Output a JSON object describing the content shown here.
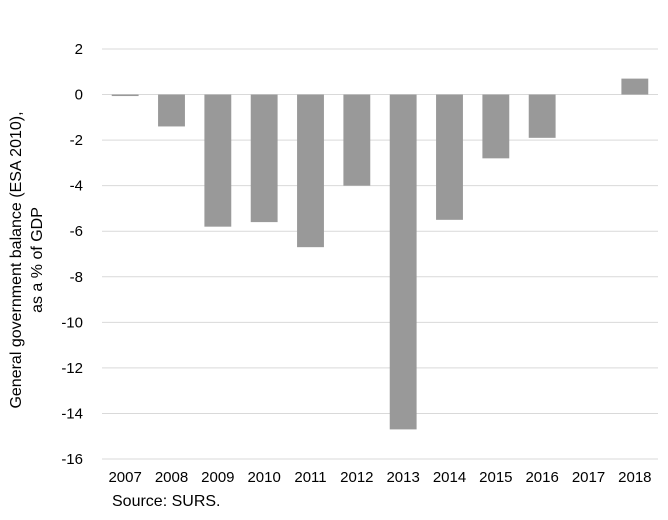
{
  "chart_data": {
    "type": "bar",
    "categories": [
      "2007",
      "2008",
      "2009",
      "2010",
      "2011",
      "2012",
      "2013",
      "2014",
      "2015",
      "2016",
      "2017",
      "2018"
    ],
    "values": [
      -0.05,
      -1.4,
      -5.8,
      -5.6,
      -6.7,
      -4.0,
      -14.7,
      -5.5,
      -2.8,
      -1.9,
      0.0,
      0.7
    ],
    "title": "",
    "xlabel": "",
    "ylabel_lines": [
      "General government balance (ESA 2010),",
      "as a % of GDP"
    ],
    "ylim": [
      -16,
      2
    ],
    "yticks": [
      2,
      0,
      -2,
      -4,
      -6,
      -8,
      -10,
      -12,
      -14,
      -16
    ],
    "grid": true,
    "bar_color": "#999999",
    "grid_color": "#d9d9d9"
  },
  "source": "Source: SURS."
}
